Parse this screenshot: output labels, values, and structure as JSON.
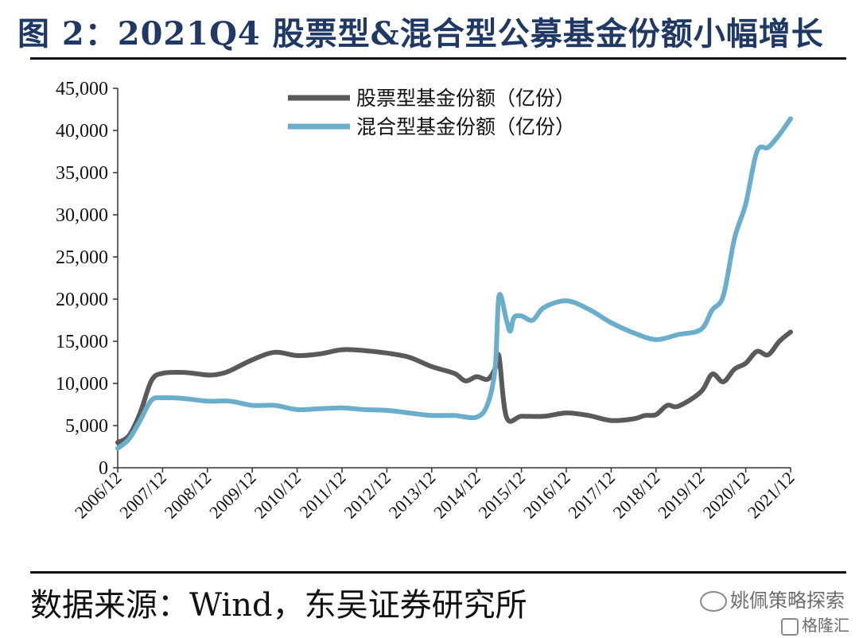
{
  "header": {
    "title": "图 2：2021Q4 股票型&混合型公募基金份额小幅增长"
  },
  "footer": {
    "source": "数据来源：Wind，东吴证券研究所"
  },
  "watermark": {
    "text": "姚佩策略探索",
    "sub_text": "格隆汇"
  },
  "chart_data": {
    "type": "line",
    "title": "",
    "xlabel": "",
    "ylabel": "",
    "ylim": [
      0,
      45000
    ],
    "yticks": [
      0,
      5000,
      10000,
      15000,
      20000,
      25000,
      30000,
      35000,
      40000,
      45000
    ],
    "ytick_labels": [
      "0",
      "5,000",
      "10,000",
      "15,000",
      "20,000",
      "25,000",
      "30,000",
      "35,000",
      "40,000",
      "45,000"
    ],
    "xlim": [
      "2006/12",
      "2021/12"
    ],
    "xtick_labels": [
      "2006/12",
      "2007/12",
      "2008/12",
      "2009/12",
      "2010/12",
      "2011/12",
      "2012/12",
      "2013/12",
      "2014/12",
      "2015/12",
      "2016/12",
      "2017/12",
      "2018/12",
      "2019/12",
      "2020/12",
      "2021/12"
    ],
    "grid": false,
    "legend": "top-center",
    "series": [
      {
        "name": "股票型基金份额（亿份）",
        "color": "#5a5a5a",
        "x": [
          "2006/12",
          "2007/03",
          "2007/06",
          "2007/09",
          "2007/12",
          "2008/06",
          "2008/12",
          "2009/03",
          "2009/06",
          "2009/12",
          "2010/06",
          "2010/12",
          "2011/06",
          "2011/12",
          "2012/06",
          "2012/12",
          "2013/06",
          "2013/12",
          "2014/06",
          "2014/09",
          "2014/12",
          "2015/03",
          "2015/05",
          "2015/06",
          "2015/08",
          "2015/12",
          "2016/06",
          "2016/12",
          "2017/06",
          "2017/12",
          "2018/06",
          "2018/09",
          "2018/12",
          "2019/03",
          "2019/06",
          "2019/12",
          "2020/03",
          "2020/06",
          "2020/09",
          "2020/12",
          "2021/03",
          "2021/06",
          "2021/09",
          "2021/12"
        ],
        "values": [
          3000,
          3800,
          6500,
          10300,
          11200,
          11300,
          11000,
          11100,
          11500,
          12800,
          13700,
          13300,
          13500,
          14000,
          13900,
          13600,
          13100,
          12000,
          11200,
          10300,
          10800,
          10500,
          11800,
          13200,
          6000,
          6100,
          6100,
          6500,
          6200,
          5600,
          5800,
          6200,
          6300,
          7400,
          7300,
          9000,
          11100,
          10200,
          11700,
          12400,
          13800,
          13400,
          15000,
          16100
        ]
      },
      {
        "name": "混合型基金份额（亿份）",
        "color": "#6aaecc",
        "x": [
          "2006/12",
          "2007/03",
          "2007/06",
          "2007/09",
          "2007/12",
          "2008/06",
          "2008/12",
          "2009/06",
          "2009/12",
          "2010/06",
          "2010/12",
          "2011/06",
          "2011/12",
          "2012/06",
          "2012/12",
          "2013/06",
          "2013/12",
          "2014/06",
          "2014/12",
          "2015/03",
          "2015/05",
          "2015/06",
          "2015/08",
          "2015/09",
          "2015/10",
          "2015/12",
          "2016/03",
          "2016/06",
          "2016/12",
          "2017/06",
          "2017/12",
          "2018/06",
          "2018/12",
          "2019/06",
          "2019/12",
          "2020/03",
          "2020/06",
          "2020/09",
          "2020/12",
          "2021/03",
          "2021/06",
          "2021/09",
          "2021/12"
        ],
        "values": [
          2300,
          3400,
          5600,
          8000,
          8300,
          8200,
          7900,
          7900,
          7400,
          7400,
          6900,
          7000,
          7100,
          6900,
          6800,
          6500,
          6200,
          6200,
          6000,
          7600,
          12000,
          20400,
          17500,
          16200,
          17800,
          18000,
          17500,
          19000,
          19800,
          18800,
          17200,
          16000,
          15200,
          15800,
          16400,
          18700,
          20400,
          27200,
          31300,
          37500,
          38000,
          39500,
          41400
        ]
      }
    ]
  }
}
